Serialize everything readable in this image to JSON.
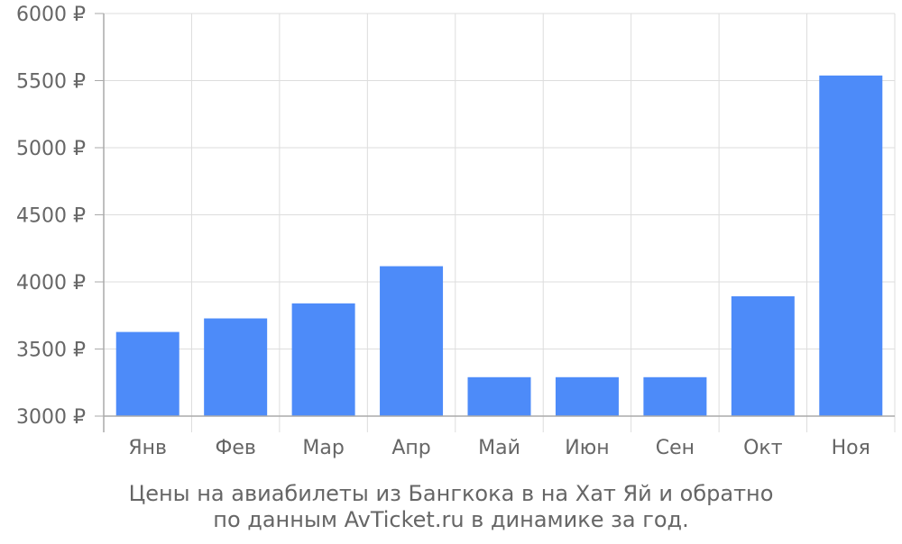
{
  "chart_data": {
    "type": "bar",
    "categories": [
      "Янв",
      "Фев",
      "Мар",
      "Апр",
      "Май",
      "Июн",
      "Сен",
      "Окт",
      "Ноя"
    ],
    "values": [
      3627,
      3728,
      3840,
      4117,
      3290,
      3290,
      3290,
      3893,
      5538
    ],
    "ylim": [
      3000,
      6000
    ],
    "yticks": [
      3000,
      3500,
      4000,
      4500,
      5000,
      5500,
      6000
    ],
    "ytick_labels": [
      "3000 ₽",
      "3500 ₽",
      "4000 ₽",
      "4500 ₽",
      "5000 ₽",
      "5500 ₽",
      "6000 ₽"
    ],
    "grid": true,
    "colors": {
      "bar": "#4d8bf9",
      "grid": "#dddddd",
      "axis": "#aaaaaa",
      "text": "#666666"
    }
  },
  "caption": {
    "line1": "Цены на авиабилеты из Бангкока в на Хат Яй и обратно",
    "line2": "по данным AvTicket.ru в динамике за год."
  }
}
